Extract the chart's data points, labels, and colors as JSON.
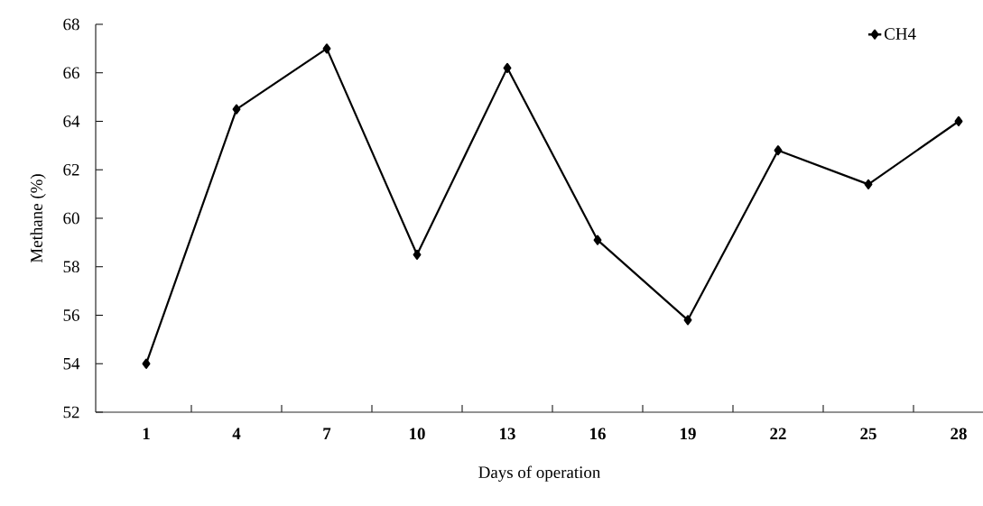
{
  "chart_data": {
    "type": "line",
    "xlabel": "Days of operation",
    "ylabel": "Methane (%)",
    "categories": [
      "1",
      "4",
      "7",
      "10",
      "13",
      "16",
      "19",
      "22",
      "25",
      "28"
    ],
    "series": [
      {
        "name": "CH4",
        "color": "#000000",
        "values": [
          54.0,
          64.5,
          67.0,
          58.5,
          66.2,
          59.1,
          55.8,
          62.8,
          61.4,
          64.0
        ]
      }
    ],
    "ylim": [
      52,
      68
    ],
    "yticks": [
      52,
      54,
      56,
      58,
      60,
      62,
      64,
      66,
      68
    ],
    "legend": "top right",
    "marker": "diamond",
    "line_style": "solid"
  }
}
